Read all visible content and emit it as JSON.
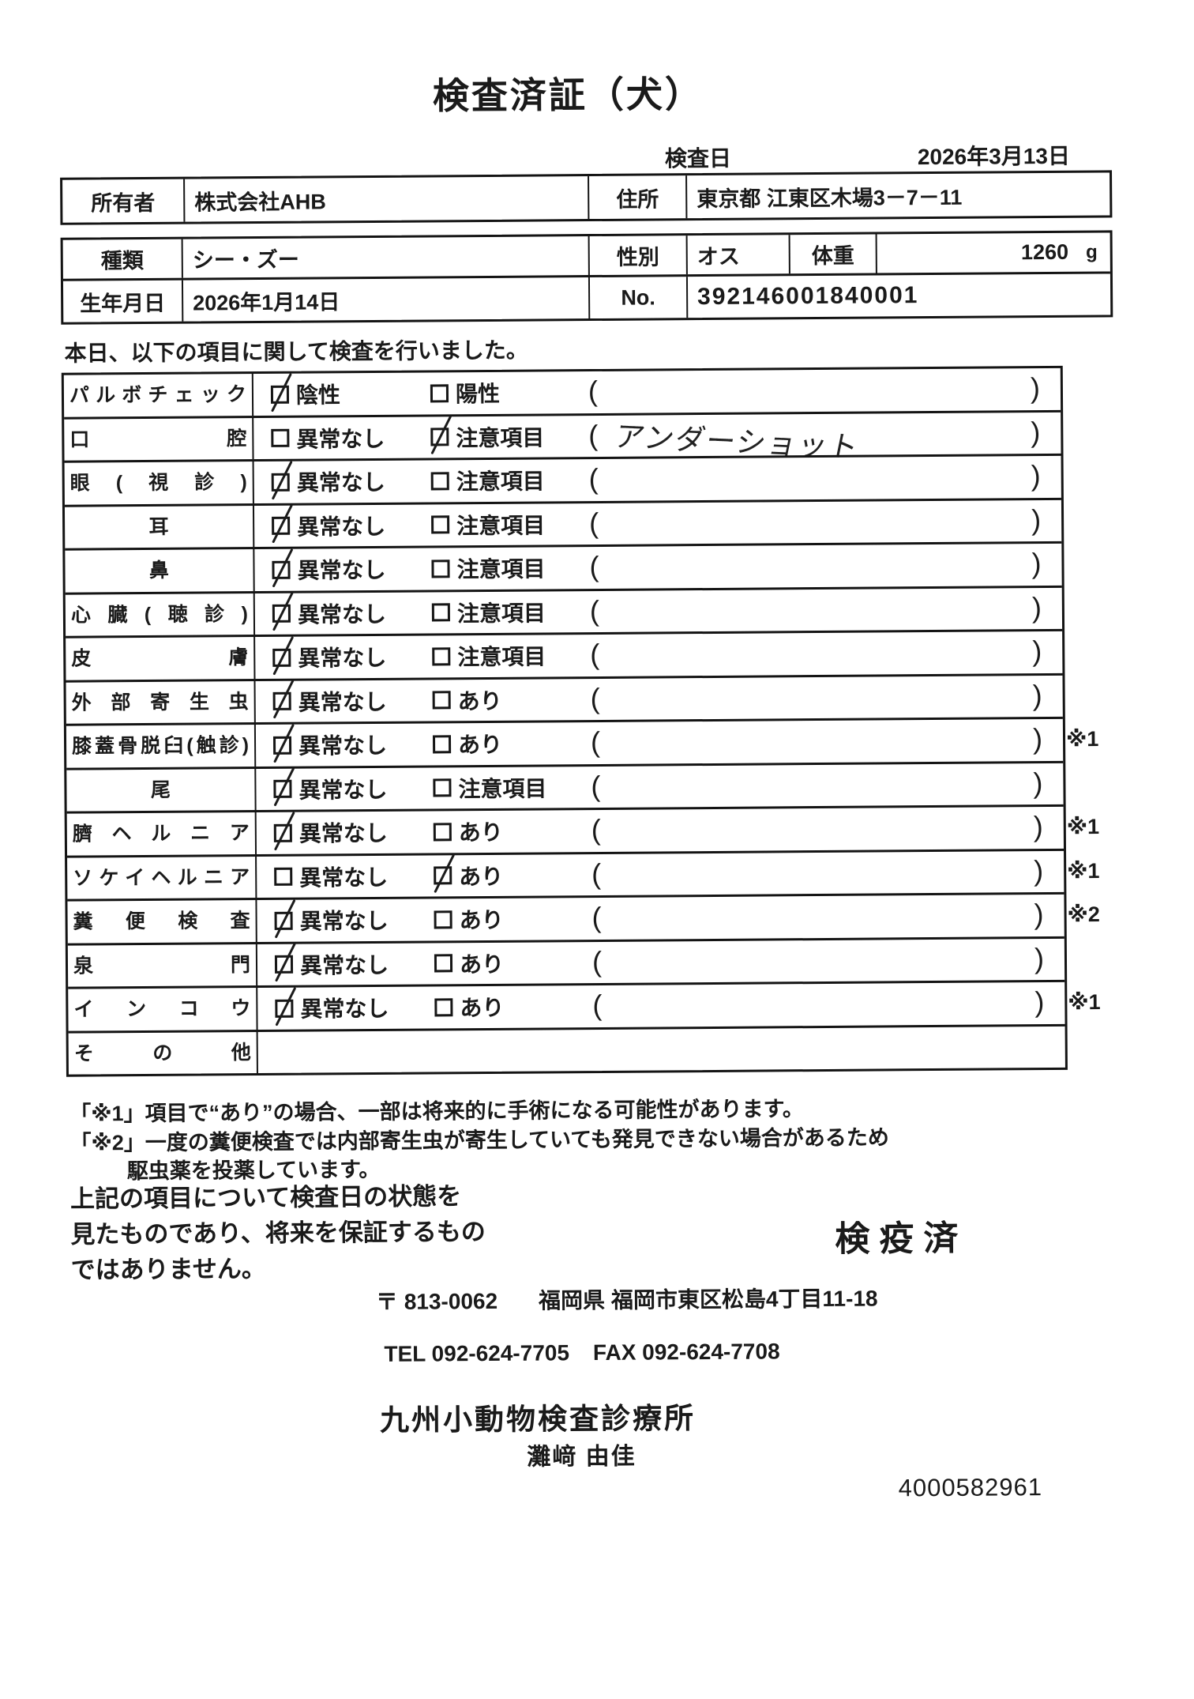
{
  "document": {
    "title": "検査済証（犬）",
    "exam_date_label": "検査日",
    "exam_date_value": "2026年3月13日"
  },
  "owner_table": {
    "owner_label": "所有者",
    "owner_value": "株式会社AHB",
    "address_label": "住所",
    "address_value": "東京都 江東区木場3－7－11"
  },
  "info_table": {
    "breed_label": "種類",
    "breed_value": "シー・ズー",
    "sex_label": "性別",
    "sex_value": "オス",
    "weight_label": "体重",
    "weight_value": "1260",
    "weight_unit": "g",
    "birth_label": "生年月日",
    "birth_value": "2026年1月14日",
    "no_label": "No.",
    "no_value": "392146001840001"
  },
  "intro_text": "本日、以下の項目に関して検査を行いました。",
  "exam_table": {
    "paren_open": "(",
    "paren_close": ")",
    "rows": [
      {
        "label": "パルボチェック",
        "opt1": "陰性",
        "opt1_checked": true,
        "opt2": "陽性",
        "opt2_checked": false,
        "note": "",
        "footnote": ""
      },
      {
        "label": "口腔",
        "opt1": "異常なし",
        "opt1_checked": false,
        "opt2": "注意項目",
        "opt2_checked": true,
        "note": "アンダーショット",
        "footnote": ""
      },
      {
        "label": "眼(視診)",
        "opt1": "異常なし",
        "opt1_checked": true,
        "opt2": "注意項目",
        "opt2_checked": false,
        "note": "",
        "footnote": ""
      },
      {
        "label": "耳",
        "center_label": true,
        "opt1": "異常なし",
        "opt1_checked": true,
        "opt2": "注意項目",
        "opt2_checked": false,
        "note": "",
        "footnote": ""
      },
      {
        "label": "鼻",
        "center_label": true,
        "opt1": "異常なし",
        "opt1_checked": true,
        "opt2": "注意項目",
        "opt2_checked": false,
        "note": "",
        "footnote": ""
      },
      {
        "label": "心臓(聴診)",
        "opt1": "異常なし",
        "opt1_checked": true,
        "opt2": "注意項目",
        "opt2_checked": false,
        "note": "",
        "footnote": ""
      },
      {
        "label": "皮膚",
        "opt1": "異常なし",
        "opt1_checked": true,
        "opt2": "注意項目",
        "opt2_checked": false,
        "note": "",
        "footnote": ""
      },
      {
        "label": "外部寄生虫",
        "opt1": "異常なし",
        "opt1_checked": true,
        "opt2": "あり",
        "opt2_checked": false,
        "note": "",
        "footnote": ""
      },
      {
        "label": "膝蓋骨脱臼(触診)",
        "opt1": "異常なし",
        "opt1_checked": true,
        "opt2": "あり",
        "opt2_checked": false,
        "note": "",
        "footnote": "※1"
      },
      {
        "label": "尾",
        "center_label": true,
        "opt1": "異常なし",
        "opt1_checked": true,
        "opt2": "注意項目",
        "opt2_checked": false,
        "note": "",
        "footnote": ""
      },
      {
        "label": "臍ヘルニア",
        "opt1": "異常なし",
        "opt1_checked": true,
        "opt2": "あり",
        "opt2_checked": false,
        "note": "",
        "footnote": "※1"
      },
      {
        "label": "ソケイヘルニア",
        "opt1": "異常なし",
        "opt1_checked": false,
        "opt2": "あり",
        "opt2_checked": true,
        "note": "",
        "footnote": "※1"
      },
      {
        "label": "糞便検査",
        "opt1": "異常なし",
        "opt1_checked": true,
        "opt2": "あり",
        "opt2_checked": false,
        "note": "",
        "footnote": "※2"
      },
      {
        "label": "泉門",
        "opt1": "異常なし",
        "opt1_checked": true,
        "opt2": "あり",
        "opt2_checked": false,
        "note": "",
        "footnote": ""
      },
      {
        "label": "インコウ",
        "opt1": "異常なし",
        "opt1_checked": true,
        "opt2": "あり",
        "opt2_checked": false,
        "note": "",
        "footnote": "※1"
      },
      {
        "label": "その他"
      }
    ]
  },
  "footnotes": {
    "note1": "「※1」項目で“あり”の場合、一部は将来的に手術になる可能性があります。",
    "note2_line1": "「※2」一度の糞便検査では内部寄生虫が寄生していても発見できない場合があるため",
    "note2_line2": "駆虫薬を投薬しています。"
  },
  "statement": {
    "line1": "上記の項目について検査日の状態を",
    "line2": "見たものであり、将来を保証するもの",
    "line3": "ではありません。"
  },
  "quarantine_stamp": "検疫済",
  "clinic": {
    "postal": "〒 813-0062",
    "address": "福岡県 福岡市東区松島4丁目11-18",
    "tel": "TEL 092-624-7705",
    "fax": "FAX 092-624-7708",
    "name": "九州小動物検査診療所",
    "examiner": "灘﨑 由佳"
  },
  "serial_number": "4000582961"
}
